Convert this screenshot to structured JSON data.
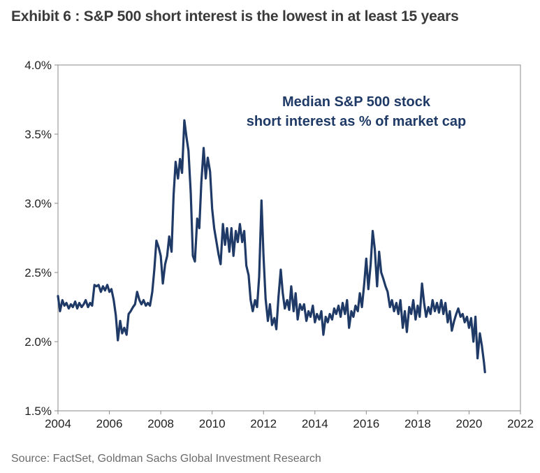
{
  "page": {
    "title": "Exhibit 6 : S&P 500 short interest is the lowest in at least 15 years",
    "source": "Source: FactSet, Goldman Sachs Global Investment Research"
  },
  "colors": {
    "series": "#1f3a66",
    "axis": "#8a8a8a",
    "title": "#3a3a3a",
    "source": "#6b6b6b"
  },
  "chart_data": {
    "type": "line",
    "title": "",
    "xlabel": "",
    "ylabel": "",
    "xlim": [
      2004,
      2022
    ],
    "ylim": [
      1.5,
      4.0
    ],
    "x_ticks": [
      2004,
      2006,
      2008,
      2010,
      2012,
      2014,
      2016,
      2018,
      2020,
      2022
    ],
    "x_tick_labels": [
      "2004",
      "2006",
      "2008",
      "2010",
      "2012",
      "2014",
      "2016",
      "2018",
      "2020",
      "2022"
    ],
    "y_ticks": [
      1.5,
      2.0,
      2.5,
      3.0,
      3.5,
      4.0
    ],
    "y_tick_labels": [
      "1.5%",
      "2.0%",
      "2.5%",
      "3.0%",
      "3.5%",
      "4.0%"
    ],
    "grid": false,
    "legend": "none",
    "annotation": [
      "Median S&P 500 stock",
      "short interest as % of market cap"
    ],
    "series": [
      {
        "color": "#1f3a66",
        "points": [
          [
            2004.0,
            2.33
          ],
          [
            2004.08,
            2.22
          ],
          [
            2004.17,
            2.3
          ],
          [
            2004.25,
            2.26
          ],
          [
            2004.33,
            2.28
          ],
          [
            2004.42,
            2.24
          ],
          [
            2004.5,
            2.27
          ],
          [
            2004.58,
            2.25
          ],
          [
            2004.67,
            2.29
          ],
          [
            2004.75,
            2.24
          ],
          [
            2004.83,
            2.28
          ],
          [
            2004.92,
            2.25
          ],
          [
            2005.0,
            2.27
          ],
          [
            2005.08,
            2.3
          ],
          [
            2005.17,
            2.25
          ],
          [
            2005.25,
            2.28
          ],
          [
            2005.33,
            2.26
          ],
          [
            2005.42,
            2.41
          ],
          [
            2005.5,
            2.4
          ],
          [
            2005.58,
            2.41
          ],
          [
            2005.67,
            2.36
          ],
          [
            2005.75,
            2.4
          ],
          [
            2005.83,
            2.37
          ],
          [
            2005.92,
            2.41
          ],
          [
            2006.0,
            2.36
          ],
          [
            2006.08,
            2.38
          ],
          [
            2006.17,
            2.3
          ],
          [
            2006.25,
            2.19
          ],
          [
            2006.33,
            2.01
          ],
          [
            2006.42,
            2.15
          ],
          [
            2006.5,
            2.06
          ],
          [
            2006.58,
            2.1
          ],
          [
            2006.67,
            2.05
          ],
          [
            2006.75,
            2.2
          ],
          [
            2006.83,
            2.22
          ],
          [
            2006.92,
            2.25
          ],
          [
            2007.0,
            2.27
          ],
          [
            2007.08,
            2.36
          ],
          [
            2007.17,
            2.3
          ],
          [
            2007.25,
            2.27
          ],
          [
            2007.33,
            2.3
          ],
          [
            2007.42,
            2.26
          ],
          [
            2007.5,
            2.28
          ],
          [
            2007.58,
            2.26
          ],
          [
            2007.67,
            2.36
          ],
          [
            2007.75,
            2.52
          ],
          [
            2007.83,
            2.73
          ],
          [
            2007.92,
            2.68
          ],
          [
            2008.0,
            2.62
          ],
          [
            2008.08,
            2.42
          ],
          [
            2008.17,
            2.56
          ],
          [
            2008.25,
            2.62
          ],
          [
            2008.33,
            2.76
          ],
          [
            2008.42,
            2.65
          ],
          [
            2008.5,
            3.06
          ],
          [
            2008.58,
            3.3
          ],
          [
            2008.67,
            3.18
          ],
          [
            2008.75,
            3.32
          ],
          [
            2008.83,
            3.22
          ],
          [
            2008.92,
            3.6
          ],
          [
            2009.0,
            3.48
          ],
          [
            2009.08,
            3.38
          ],
          [
            2009.17,
            3.07
          ],
          [
            2009.25,
            2.62
          ],
          [
            2009.33,
            2.58
          ],
          [
            2009.42,
            2.89
          ],
          [
            2009.5,
            2.82
          ],
          [
            2009.58,
            3.15
          ],
          [
            2009.67,
            3.4
          ],
          [
            2009.75,
            3.18
          ],
          [
            2009.83,
            3.33
          ],
          [
            2009.92,
            3.23
          ],
          [
            2010.0,
            2.96
          ],
          [
            2010.08,
            2.82
          ],
          [
            2010.17,
            2.72
          ],
          [
            2010.25,
            2.63
          ],
          [
            2010.33,
            2.56
          ],
          [
            2010.42,
            2.85
          ],
          [
            2010.5,
            2.7
          ],
          [
            2010.58,
            2.82
          ],
          [
            2010.67,
            2.65
          ],
          [
            2010.75,
            2.82
          ],
          [
            2010.83,
            2.62
          ],
          [
            2010.92,
            2.8
          ],
          [
            2011.0,
            2.72
          ],
          [
            2011.08,
            2.85
          ],
          [
            2011.17,
            2.72
          ],
          [
            2011.25,
            2.8
          ],
          [
            2011.33,
            2.55
          ],
          [
            2011.42,
            2.48
          ],
          [
            2011.5,
            2.3
          ],
          [
            2011.58,
            2.22
          ],
          [
            2011.67,
            2.3
          ],
          [
            2011.75,
            2.25
          ],
          [
            2011.83,
            2.47
          ],
          [
            2011.92,
            3.02
          ],
          [
            2012.0,
            2.62
          ],
          [
            2012.08,
            2.31
          ],
          [
            2012.17,
            2.15
          ],
          [
            2012.25,
            2.27
          ],
          [
            2012.33,
            2.12
          ],
          [
            2012.42,
            2.17
          ],
          [
            2012.5,
            2.09
          ],
          [
            2012.58,
            2.32
          ],
          [
            2012.67,
            2.52
          ],
          [
            2012.75,
            2.35
          ],
          [
            2012.83,
            2.24
          ],
          [
            2012.92,
            2.3
          ],
          [
            2013.0,
            2.23
          ],
          [
            2013.08,
            2.4
          ],
          [
            2013.17,
            2.22
          ],
          [
            2013.25,
            2.35
          ],
          [
            2013.33,
            2.16
          ],
          [
            2013.42,
            2.27
          ],
          [
            2013.5,
            2.23
          ],
          [
            2013.58,
            2.27
          ],
          [
            2013.67,
            2.15
          ],
          [
            2013.75,
            2.22
          ],
          [
            2013.83,
            2.18
          ],
          [
            2013.92,
            2.26
          ],
          [
            2014.0,
            2.14
          ],
          [
            2014.08,
            2.2
          ],
          [
            2014.17,
            2.16
          ],
          [
            2014.25,
            2.22
          ],
          [
            2014.33,
            2.05
          ],
          [
            2014.42,
            2.18
          ],
          [
            2014.5,
            2.14
          ],
          [
            2014.58,
            2.2
          ],
          [
            2014.67,
            2.16
          ],
          [
            2014.75,
            2.24
          ],
          [
            2014.83,
            2.2
          ],
          [
            2014.92,
            2.26
          ],
          [
            2015.0,
            2.18
          ],
          [
            2015.08,
            2.28
          ],
          [
            2015.17,
            2.2
          ],
          [
            2015.25,
            2.3
          ],
          [
            2015.33,
            2.1
          ],
          [
            2015.42,
            2.22
          ],
          [
            2015.5,
            2.18
          ],
          [
            2015.58,
            2.26
          ],
          [
            2015.67,
            2.22
          ],
          [
            2015.75,
            2.35
          ],
          [
            2015.83,
            2.25
          ],
          [
            2015.92,
            2.42
          ],
          [
            2016.0,
            2.6
          ],
          [
            2016.08,
            2.38
          ],
          [
            2016.17,
            2.56
          ],
          [
            2016.25,
            2.8
          ],
          [
            2016.33,
            2.67
          ],
          [
            2016.42,
            2.4
          ],
          [
            2016.5,
            2.65
          ],
          [
            2016.58,
            2.5
          ],
          [
            2016.67,
            2.45
          ],
          [
            2016.75,
            2.4
          ],
          [
            2016.83,
            2.36
          ],
          [
            2016.92,
            2.25
          ],
          [
            2017.0,
            2.3
          ],
          [
            2017.08,
            2.22
          ],
          [
            2017.17,
            2.28
          ],
          [
            2017.25,
            2.2
          ],
          [
            2017.33,
            2.3
          ],
          [
            2017.42,
            2.1
          ],
          [
            2017.5,
            2.22
          ],
          [
            2017.58,
            2.07
          ],
          [
            2017.67,
            2.25
          ],
          [
            2017.75,
            2.2
          ],
          [
            2017.83,
            2.3
          ],
          [
            2017.92,
            2.16
          ],
          [
            2018.0,
            2.26
          ],
          [
            2018.08,
            2.18
          ],
          [
            2018.17,
            2.42
          ],
          [
            2018.25,
            2.28
          ],
          [
            2018.33,
            2.18
          ],
          [
            2018.42,
            2.25
          ],
          [
            2018.5,
            2.2
          ],
          [
            2018.58,
            2.3
          ],
          [
            2018.67,
            2.22
          ],
          [
            2018.75,
            2.28
          ],
          [
            2018.83,
            2.21
          ],
          [
            2018.92,
            2.3
          ],
          [
            2019.0,
            2.2
          ],
          [
            2019.08,
            2.28
          ],
          [
            2019.17,
            2.14
          ],
          [
            2019.25,
            2.22
          ],
          [
            2019.33,
            2.08
          ],
          [
            2019.42,
            2.15
          ],
          [
            2019.5,
            2.2
          ],
          [
            2019.58,
            2.24
          ],
          [
            2019.67,
            2.18
          ],
          [
            2019.75,
            2.2
          ],
          [
            2019.83,
            2.14
          ],
          [
            2019.92,
            2.18
          ],
          [
            2020.0,
            2.1
          ],
          [
            2020.08,
            2.17
          ],
          [
            2020.17,
            2.0
          ],
          [
            2020.25,
            2.18
          ],
          [
            2020.33,
            1.88
          ],
          [
            2020.42,
            2.06
          ],
          [
            2020.5,
            1.97
          ],
          [
            2020.58,
            1.85
          ],
          [
            2020.62,
            1.78
          ]
        ]
      }
    ]
  }
}
